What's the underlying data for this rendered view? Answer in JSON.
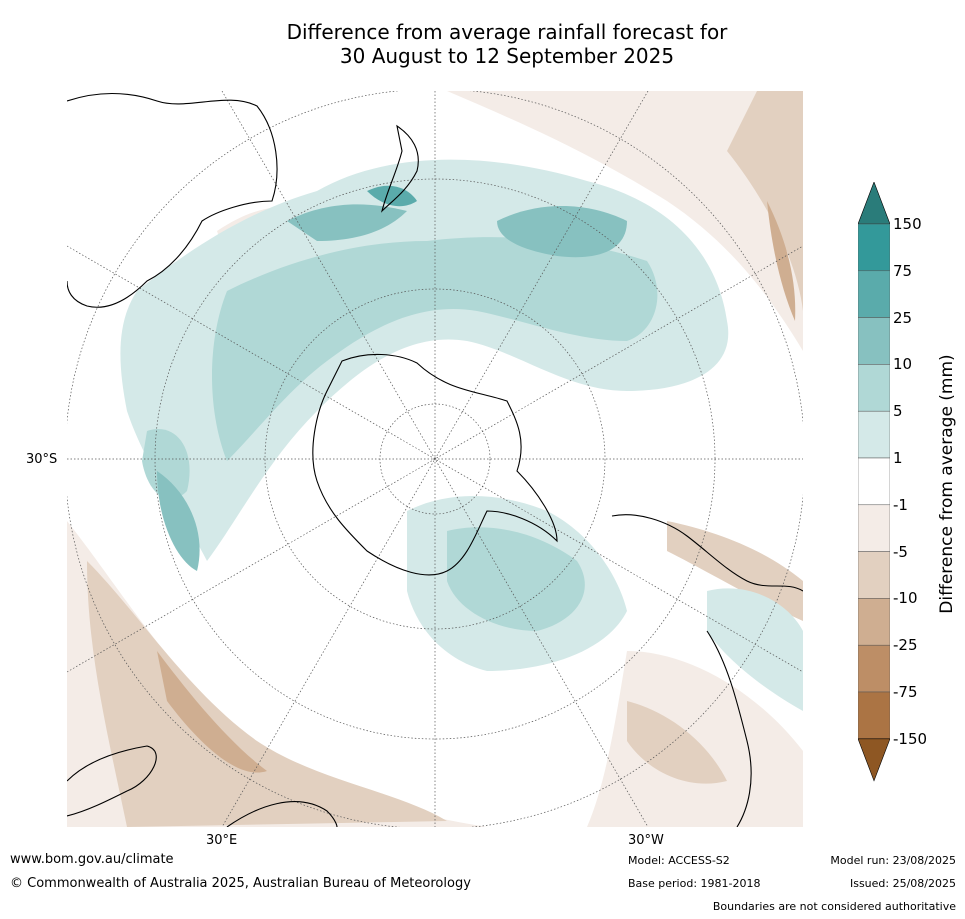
{
  "title": {
    "line1": "Difference from average rainfall forecast for",
    "line2": "30 August to 12 September 2025"
  },
  "map": {
    "lat_label": "30°S",
    "lon_label_east": "30°E",
    "lon_label_west": "30°W"
  },
  "colorbar": {
    "label": "Difference from average (mm)",
    "ticks": [
      "150",
      "75",
      "25",
      "10",
      "5",
      "1",
      "-1",
      "-5",
      "-10",
      "-25",
      "-75",
      "-150"
    ],
    "colors": [
      "#2a7c7a",
      "#33999a",
      "#5aabab",
      "#87c1c0",
      "#b0d8d6",
      "#d4e9e8",
      "#ffffff",
      "#f4ece7",
      "#e2d0c0",
      "#cfae91",
      "#bd8e66",
      "#ab7444",
      "#8e5723"
    ]
  },
  "footer": {
    "website": "www.bom.gov.au/climate",
    "copyright": "© Commonwealth of Australia 2025, Australian Bureau of Meteorology",
    "model": "Model: ACCESS-S2",
    "base_period": "Base period: 1981-2018",
    "model_run": "Model run: 23/08/2025",
    "issued": "Issued: 25/08/2025",
    "disclaimer": "Boundaries are not considered authoritative"
  }
}
